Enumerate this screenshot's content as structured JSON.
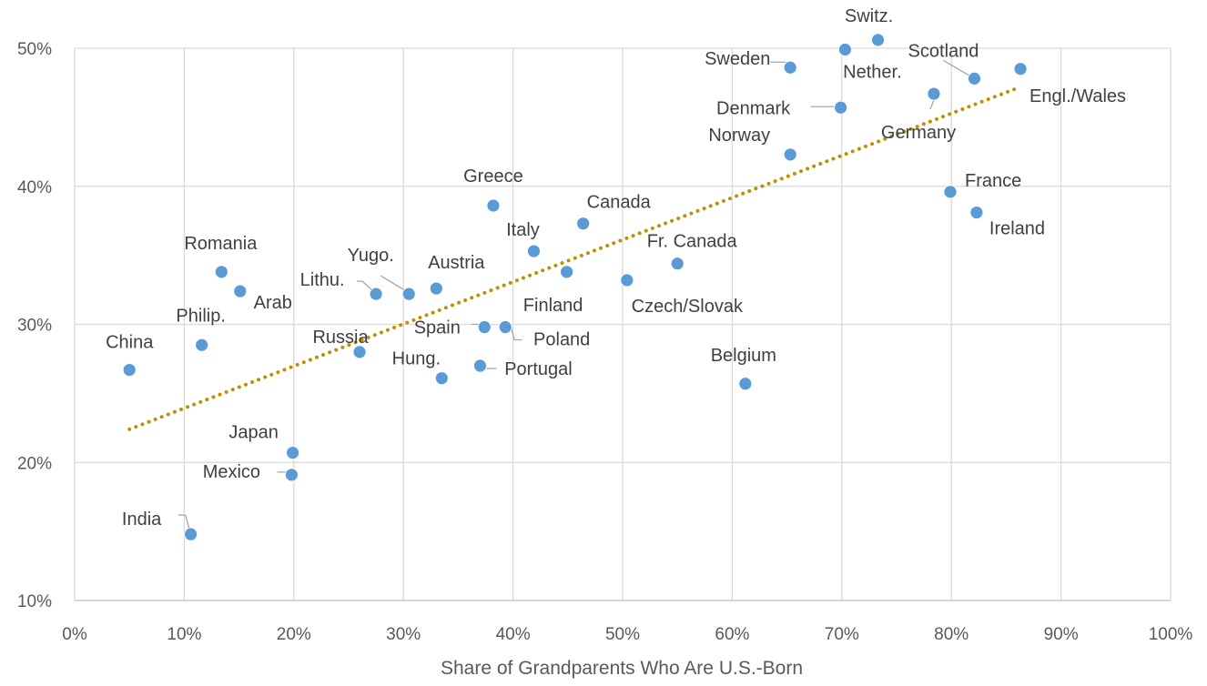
{
  "chart_data": {
    "type": "scatter",
    "xlabel": "Share of Grandparents Who Are U.S.-Born",
    "ylabel": "",
    "xlim": [
      0,
      100
    ],
    "ylim": [
      10,
      50
    ],
    "x_ticks": [
      "0%",
      "10%",
      "20%",
      "30%",
      "40%",
      "50%",
      "60%",
      "70%",
      "80%",
      "90%",
      "100%"
    ],
    "y_ticks": [
      "10%",
      "20%",
      "30%",
      "40%",
      "50%"
    ],
    "grid": true,
    "legend": "none",
    "colors": {
      "points": "#5b9bd5",
      "trendline": "#bf9000"
    },
    "trendline": {
      "style": "dotted",
      "x": [
        5,
        86.3
      ],
      "y": [
        22.4,
        47.2
      ]
    },
    "points": [
      {
        "name": "Switz.",
        "x": 73.3,
        "y": 50.6
      },
      {
        "name": "Nether.",
        "x": 70.3,
        "y": 49.9
      },
      {
        "name": "Sweden",
        "x": 65.3,
        "y": 48.6
      },
      {
        "name": "Scotland",
        "x": 82.1,
        "y": 47.8
      },
      {
        "name": "Engl./Wales",
        "x": 86.3,
        "y": 48.5
      },
      {
        "name": "Germany",
        "x": 78.4,
        "y": 46.7
      },
      {
        "name": "Denmark",
        "x": 69.9,
        "y": 45.7
      },
      {
        "name": "Norway",
        "x": 65.3,
        "y": 42.3
      },
      {
        "name": "France",
        "x": 79.9,
        "y": 39.6
      },
      {
        "name": "Ireland",
        "x": 82.3,
        "y": 38.1
      },
      {
        "name": "Greece",
        "x": 38.2,
        "y": 38.6
      },
      {
        "name": "Canada",
        "x": 46.4,
        "y": 37.3
      },
      {
        "name": "Italy",
        "x": 41.9,
        "y": 35.3
      },
      {
        "name": "Fr. Canada",
        "x": 55.0,
        "y": 34.4
      },
      {
        "name": "Finland",
        "x": 44.9,
        "y": 33.8
      },
      {
        "name": "Czech/Slovak",
        "x": 50.4,
        "y": 33.2
      },
      {
        "name": "Austria",
        "x": 33.0,
        "y": 32.6
      },
      {
        "name": "Yugo.",
        "x": 30.5,
        "y": 32.2
      },
      {
        "name": "Lithu.",
        "x": 27.5,
        "y": 32.2
      },
      {
        "name": "Romania",
        "x": 13.4,
        "y": 33.8
      },
      {
        "name": "Arab",
        "x": 15.1,
        "y": 32.4
      },
      {
        "name": "Philip.",
        "x": 11.6,
        "y": 28.5
      },
      {
        "name": "China",
        "x": 5.0,
        "y": 26.7
      },
      {
        "name": "Russia",
        "x": 26.0,
        "y": 28.0
      },
      {
        "name": "Spain",
        "x": 37.4,
        "y": 29.8
      },
      {
        "name": "Poland",
        "x": 39.3,
        "y": 29.8
      },
      {
        "name": "Portugal",
        "x": 37.0,
        "y": 27.0
      },
      {
        "name": "Hung.",
        "x": 33.5,
        "y": 26.1
      },
      {
        "name": "Belgium",
        "x": 61.2,
        "y": 25.7
      },
      {
        "name": "Japan",
        "x": 19.9,
        "y": 20.7
      },
      {
        "name": "Mexico",
        "x": 19.8,
        "y": 19.1
      },
      {
        "name": "India",
        "x": 10.6,
        "y": 14.8
      }
    ]
  }
}
